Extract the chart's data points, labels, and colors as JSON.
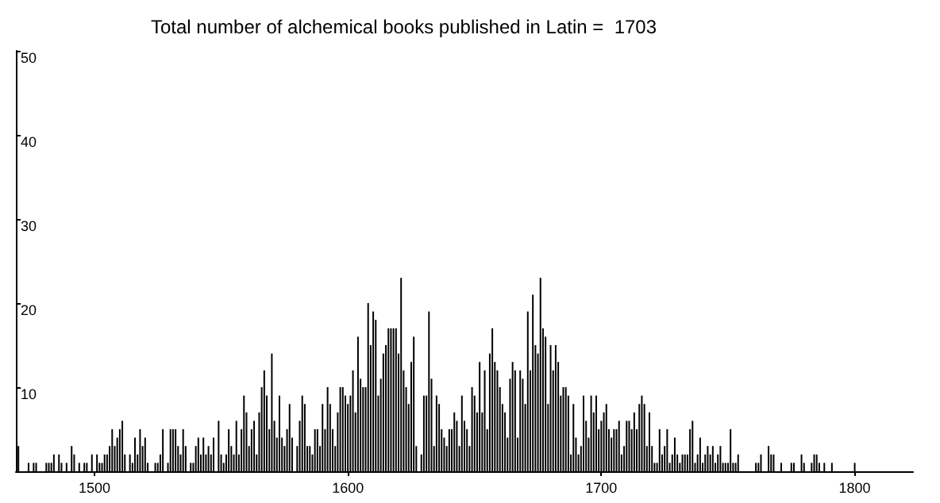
{
  "chart_data": {
    "type": "bar",
    "title": "Total number of alchemical books published in Latin =  1703",
    "color": "#000000",
    "x": [
      1470,
      1471,
      1472,
      1473,
      1474,
      1475,
      1476,
      1477,
      1478,
      1479,
      1480,
      1481,
      1482,
      1483,
      1484,
      1485,
      1486,
      1487,
      1488,
      1489,
      1490,
      1491,
      1492,
      1493,
      1494,
      1495,
      1496,
      1497,
      1498,
      1499,
      1500,
      1501,
      1502,
      1503,
      1504,
      1505,
      1506,
      1507,
      1508,
      1509,
      1510,
      1511,
      1512,
      1513,
      1514,
      1515,
      1516,
      1517,
      1518,
      1519,
      1520,
      1521,
      1522,
      1523,
      1524,
      1525,
      1526,
      1527,
      1528,
      1529,
      1530,
      1531,
      1532,
      1533,
      1534,
      1535,
      1536,
      1537,
      1538,
      1539,
      1540,
      1541,
      1542,
      1543,
      1544,
      1545,
      1546,
      1547,
      1548,
      1549,
      1550,
      1551,
      1552,
      1553,
      1554,
      1555,
      1556,
      1557,
      1558,
      1559,
      1560,
      1561,
      1562,
      1563,
      1564,
      1565,
      1566,
      1567,
      1568,
      1569,
      1570,
      1571,
      1572,
      1573,
      1574,
      1575,
      1576,
      1577,
      1578,
      1579,
      1580,
      1581,
      1582,
      1583,
      1584,
      1585,
      1586,
      1587,
      1588,
      1589,
      1590,
      1591,
      1592,
      1593,
      1594,
      1595,
      1596,
      1597,
      1598,
      1599,
      1600,
      1601,
      1602,
      1603,
      1604,
      1605,
      1606,
      1607,
      1608,
      1609,
      1610,
      1611,
      1612,
      1613,
      1614,
      1615,
      1616,
      1617,
      1618,
      1619,
      1620,
      1621,
      1622,
      1623,
      1624,
      1625,
      1626,
      1627,
      1628,
      1629,
      1630,
      1631,
      1632,
      1633,
      1634,
      1635,
      1636,
      1637,
      1638,
      1639,
      1640,
      1641,
      1642,
      1643,
      1644,
      1645,
      1646,
      1647,
      1648,
      1649,
      1650,
      1651,
      1652,
      1653,
      1654,
      1655,
      1656,
      1657,
      1658,
      1659,
      1660,
      1661,
      1662,
      1663,
      1664,
      1665,
      1666,
      1667,
      1668,
      1669,
      1670,
      1671,
      1672,
      1673,
      1674,
      1675,
      1676,
      1677,
      1678,
      1679,
      1680,
      1681,
      1682,
      1683,
      1684,
      1685,
      1686,
      1687,
      1688,
      1689,
      1690,
      1691,
      1692,
      1693,
      1694,
      1695,
      1696,
      1697,
      1698,
      1699,
      1700,
      1701,
      1702,
      1703,
      1704,
      1705,
      1706,
      1707,
      1708,
      1709,
      1710,
      1711,
      1712,
      1713,
      1714,
      1715,
      1716,
      1717,
      1718,
      1719,
      1720,
      1721,
      1722,
      1723,
      1724,
      1725,
      1726,
      1727,
      1728,
      1729,
      1730,
      1731,
      1732,
      1733,
      1734,
      1735,
      1736,
      1737,
      1738,
      1739,
      1740,
      1741,
      1742,
      1743,
      1744,
      1745,
      1746,
      1747,
      1748,
      1749,
      1750,
      1751,
      1752,
      1753,
      1754,
      1755,
      1756,
      1757,
      1758,
      1759,
      1760,
      1761,
      1762,
      1763,
      1764,
      1765,
      1766,
      1767,
      1768,
      1769,
      1770,
      1771,
      1772,
      1773,
      1774,
      1775,
      1776,
      1777,
      1778,
      1779,
      1780,
      1781,
      1782,
      1783,
      1784,
      1785,
      1786,
      1787,
      1788,
      1789,
      1790,
      1791,
      1792,
      1793,
      1794,
      1795,
      1796,
      1797,
      1798,
      1799,
      1800
    ],
    "values": [
      3,
      0,
      0,
      0,
      1,
      0,
      1,
      1,
      0,
      0,
      0,
      1,
      1,
      1,
      2,
      0,
      2,
      1,
      0,
      1,
      0,
      3,
      2,
      0,
      1,
      0,
      1,
      1,
      0,
      2,
      0,
      2,
      1,
      1,
      2,
      2,
      3,
      5,
      3,
      4,
      5,
      6,
      2,
      0,
      2,
      1,
      4,
      2,
      5,
      3,
      4,
      1,
      0,
      0,
      1,
      1,
      2,
      5,
      0,
      1,
      5,
      5,
      5,
      3,
      2,
      5,
      3,
      0,
      1,
      1,
      3,
      4,
      2,
      4,
      2,
      3,
      2,
      4,
      0,
      6,
      2,
      1,
      2,
      5,
      3,
      2,
      6,
      2,
      5,
      9,
      7,
      3,
      5,
      6,
      2,
      7,
      10,
      12,
      9,
      5,
      14,
      6,
      4,
      9,
      4,
      3,
      5,
      8,
      4,
      0,
      3,
      6,
      9,
      8,
      3,
      3,
      2,
      5,
      5,
      3,
      8,
      5,
      10,
      8,
      5,
      3,
      7,
      10,
      10,
      9,
      8,
      9,
      12,
      7,
      16,
      11,
      10,
      10,
      20,
      15,
      19,
      18,
      9,
      11,
      14,
      15,
      17,
      17,
      17,
      17,
      14,
      23,
      12,
      10,
      8,
      13,
      16,
      3,
      0,
      2,
      9,
      9,
      19,
      11,
      3,
      9,
      8,
      5,
      4,
      3,
      5,
      5,
      7,
      6,
      3,
      9,
      6,
      5,
      3,
      10,
      9,
      7,
      13,
      7,
      12,
      5,
      14,
      17,
      13,
      12,
      10,
      8,
      7,
      4,
      11,
      13,
      12,
      4,
      12,
      11,
      8,
      19,
      12,
      21,
      15,
      14,
      23,
      17,
      16,
      8,
      15,
      12,
      15,
      13,
      9,
      10,
      10,
      9,
      2,
      8,
      4,
      2,
      3,
      9,
      6,
      4,
      9,
      7,
      9,
      5,
      6,
      7,
      8,
      5,
      4,
      5,
      5,
      6,
      2,
      3,
      6,
      6,
      5,
      7,
      5,
      8,
      9,
      8,
      3,
      7,
      3,
      1,
      1,
      5,
      2,
      3,
      5,
      1,
      2,
      4,
      2,
      1,
      2,
      2,
      2,
      5,
      6,
      1,
      2,
      4,
      1,
      2,
      3,
      2,
      3,
      1,
      2,
      3,
      1,
      1,
      1,
      5,
      1,
      1,
      2,
      0,
      0,
      0,
      0,
      0,
      0,
      1,
      1,
      2,
      0,
      0,
      3,
      2,
      2,
      0,
      0,
      1,
      0,
      0,
      0,
      1,
      1,
      0,
      0,
      2,
      1,
      0,
      0,
      1,
      2,
      2,
      1,
      0,
      1,
      0,
      0,
      1,
      0,
      0,
      0,
      0,
      0,
      0,
      0,
      0,
      1
    ],
    "xlim": [
      1469,
      1823
    ],
    "xticks": [
      1500,
      1600,
      1700,
      1800
    ],
    "ylim": [
      0,
      50
    ],
    "yticks": [
      {
        "value": 0,
        "label": null
      },
      10,
      20,
      30,
      40,
      50
    ]
  }
}
